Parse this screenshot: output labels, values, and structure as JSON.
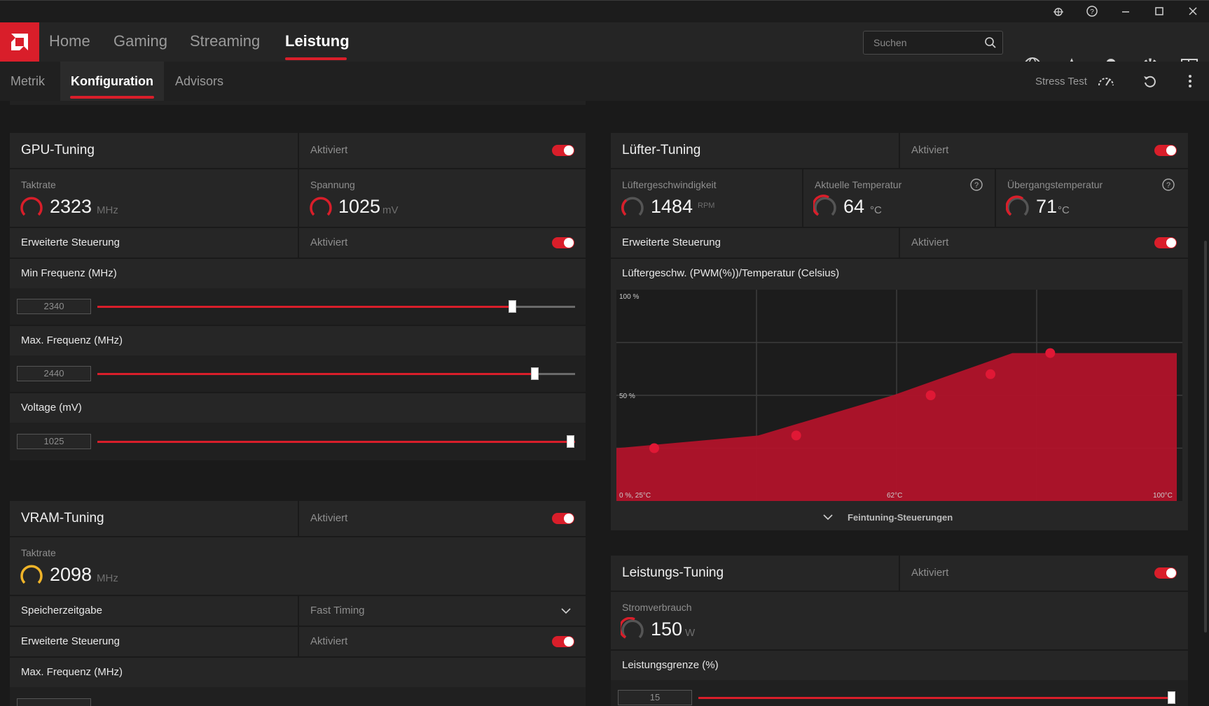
{
  "window": {
    "controls": [
      "bug-icon",
      "help-icon",
      "minimize-icon",
      "maximize-icon",
      "close-icon"
    ]
  },
  "nav": {
    "tabs": [
      "Home",
      "Gaming",
      "Streaming",
      "Leistung"
    ],
    "active": "Leistung",
    "search_placeholder": "Suchen",
    "icons": [
      "globe-icon",
      "star-icon",
      "bell-icon",
      "gear-icon",
      "sidebar-icon"
    ]
  },
  "subnav": {
    "tabs": [
      "Metrik",
      "Konfiguration",
      "Advisors"
    ],
    "active": "Konfiguration",
    "stress_test": "Stress Test"
  },
  "gpu": {
    "title": "GPU-Tuning",
    "status": "Aktiviert",
    "clock_label": "Taktrate",
    "clock_value": "2323",
    "clock_unit": "MHz",
    "voltage_label": "Spannung",
    "voltage_value": "1025",
    "voltage_unit": "mV",
    "advanced_label": "Erweiterte Steuerung",
    "advanced_status": "Aktiviert",
    "min_freq_label": "Min Frequenz (MHz)",
    "min_freq_value": "2340",
    "min_freq_fraction": 0.87,
    "max_freq_label": "Max. Frequenz (MHz)",
    "max_freq_value": "2440",
    "max_freq_fraction": 0.916,
    "voltage_slider_label": "Voltage (mV)",
    "voltage_slider_value": "1025",
    "voltage_slider_fraction": 1.0
  },
  "vram": {
    "title": "VRAM-Tuning",
    "status": "Aktiviert",
    "clock_label": "Taktrate",
    "clock_value": "2098",
    "clock_unit": "MHz",
    "timing_label": "Speicherzeitgabe",
    "timing_value": "Fast Timing",
    "advanced_label": "Erweiterte Steuerung",
    "advanced_status": "Aktiviert",
    "max_freq_label": "Max. Frequenz (MHz)"
  },
  "fan": {
    "title": "Lüfter-Tuning",
    "status": "Aktiviert",
    "speed_label": "Lüftergeschwindigkeit",
    "speed_value": "1484",
    "speed_unit": "RPM",
    "temp_label": "Aktuelle Temperatur",
    "temp_value": "64",
    "temp_unit": "°C",
    "junction_label": "Übergangstemperatur",
    "junction_value": "71",
    "junction_unit": "°C",
    "advanced_label": "Erweiterte Steuerung",
    "advanced_status": "Aktiviert",
    "curve_label": "Lüftergeschw. (PWM(%))/Temperatur (Celsius)",
    "fine_tune_label": "Feintuning-Steuerungen"
  },
  "power": {
    "title": "Leistungs-Tuning",
    "status": "Aktiviert",
    "consumption_label": "Stromverbrauch",
    "consumption_value": "150",
    "consumption_unit": "W",
    "limit_label": "Leistungsgrenze (%)",
    "limit_value": "15"
  },
  "colors": {
    "accent": "#d91e2a",
    "vram_gauge": "#f0b429",
    "chart_fill": "#b5122a"
  },
  "chart_data": {
    "type": "area",
    "x": [
      25,
      44,
      62,
      70,
      78,
      100
    ],
    "series": [
      {
        "values": [
          25,
          31,
          50,
          60,
          70,
          70
        ]
      }
    ],
    "xlim": [
      25,
      100
    ],
    "ylim": [
      0,
      100
    ],
    "y_ticks": [
      "100 %",
      "50 %"
    ],
    "x_ticks": [
      "0 %, 25°C",
      "62°C",
      "100°C"
    ],
    "grid": true
  }
}
